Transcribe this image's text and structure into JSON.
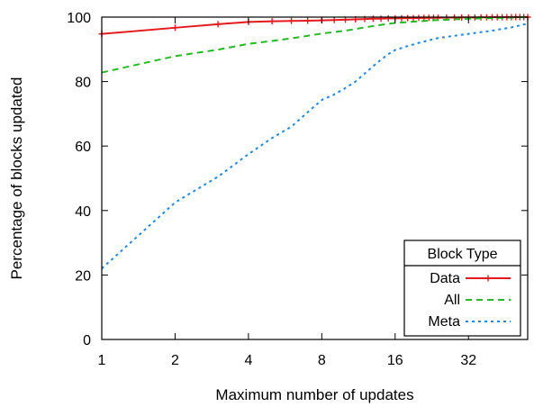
{
  "chart_data": {
    "type": "line",
    "title": "",
    "xlabel": "Maximum number of updates",
    "ylabel": "Percentage of blocks updated",
    "x_scale": "log2",
    "xlim": [
      1,
      56
    ],
    "ylim": [
      0,
      100
    ],
    "x_ticks": [
      1,
      2,
      4,
      8,
      16,
      32
    ],
    "x_tick_labels": [
      "1",
      "2",
      "4",
      "8",
      "16",
      "32"
    ],
    "y_ticks": [
      0,
      20,
      40,
      60,
      80,
      100
    ],
    "y_tick_labels": [
      "0",
      "20",
      "40",
      "60",
      "80",
      "100"
    ],
    "grid": false,
    "legend": {
      "title": "Block Type",
      "placement": "bottom-right"
    },
    "series": [
      {
        "name": "Data",
        "color": "#e41a1c",
        "style": "solid-with-plus-markers",
        "points": [
          [
            1,
            94.8
          ],
          [
            2,
            96.7
          ],
          [
            3,
            97.8
          ],
          [
            4,
            98.5
          ],
          [
            5,
            98.7
          ],
          [
            6,
            98.8
          ],
          [
            7,
            98.9
          ],
          [
            8,
            99.0
          ],
          [
            9,
            99.1
          ],
          [
            10,
            99.2
          ],
          [
            11,
            99.3
          ],
          [
            12,
            99.4
          ],
          [
            13,
            99.5
          ],
          [
            14,
            99.5
          ],
          [
            15,
            99.6
          ],
          [
            16,
            99.6
          ],
          [
            17,
            99.65
          ],
          [
            18,
            99.7
          ],
          [
            19,
            99.7
          ],
          [
            20,
            99.75
          ],
          [
            21,
            99.75
          ],
          [
            22,
            99.8
          ],
          [
            23,
            99.8
          ],
          [
            24,
            99.8
          ],
          [
            26,
            99.85
          ],
          [
            28,
            99.85
          ],
          [
            30,
            99.9
          ],
          [
            32,
            99.9
          ],
          [
            34,
            99.9
          ],
          [
            36,
            99.92
          ],
          [
            38,
            99.94
          ],
          [
            40,
            99.95
          ],
          [
            42,
            99.96
          ],
          [
            44,
            99.97
          ],
          [
            46,
            99.98
          ],
          [
            48,
            99.98
          ],
          [
            50,
            99.99
          ],
          [
            52,
            99.99
          ],
          [
            54,
            100
          ],
          [
            56,
            100
          ]
        ]
      },
      {
        "name": "All",
        "color": "#22bb22",
        "style": "dashed",
        "points": [
          [
            1,
            82.8
          ],
          [
            2,
            87.9
          ],
          [
            3,
            89.9
          ],
          [
            4,
            91.7
          ],
          [
            5,
            92.6
          ],
          [
            6,
            93.4
          ],
          [
            7,
            94.2
          ],
          [
            8,
            94.9
          ],
          [
            10,
            95.8
          ],
          [
            12,
            96.8
          ],
          [
            14,
            97.6
          ],
          [
            16,
            98.2
          ],
          [
            20,
            98.7
          ],
          [
            24,
            99.1
          ],
          [
            28,
            99.3
          ],
          [
            32,
            99.5
          ],
          [
            40,
            99.7
          ],
          [
            48,
            99.85
          ],
          [
            56,
            100
          ]
        ]
      },
      {
        "name": "Meta",
        "color": "#1e88e5",
        "style": "dotted",
        "points": [
          [
            1,
            22
          ],
          [
            2,
            42.5
          ],
          [
            3,
            50.5
          ],
          [
            4,
            57.5
          ],
          [
            5,
            62.5
          ],
          [
            6,
            66
          ],
          [
            7,
            70.5
          ],
          [
            8,
            74.3
          ],
          [
            9,
            76
          ],
          [
            10,
            78
          ],
          [
            11,
            80
          ],
          [
            12,
            82.5
          ],
          [
            13,
            84.8
          ],
          [
            14,
            86.8
          ],
          [
            15,
            88.5
          ],
          [
            16,
            89.8
          ],
          [
            18,
            91
          ],
          [
            20,
            92
          ],
          [
            22,
            92.8
          ],
          [
            24,
            93.5
          ],
          [
            28,
            94.2
          ],
          [
            32,
            94.8
          ],
          [
            40,
            95.8
          ],
          [
            48,
            96.8
          ],
          [
            56,
            98
          ]
        ]
      }
    ]
  }
}
